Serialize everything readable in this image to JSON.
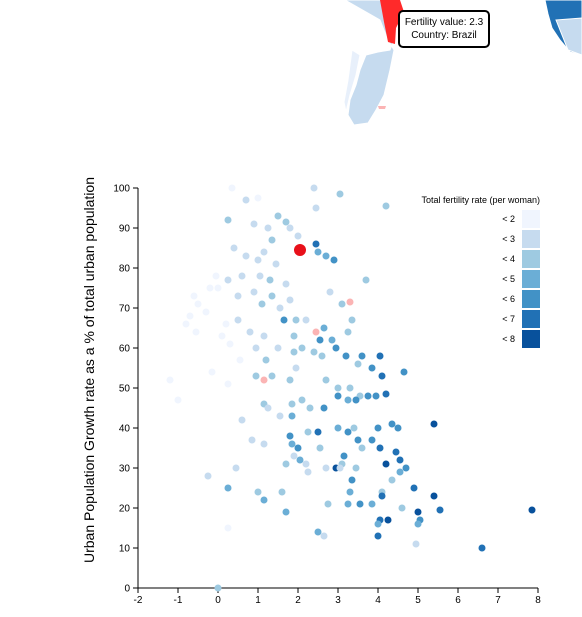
{
  "tooltip": {
    "line1": "Fertility value: 2.3",
    "line2": "Country: Brazil",
    "highlight_color": "#ff2a2a"
  },
  "colors": {
    "low": "#eef3fd",
    "bins": [
      "#f0f5fe",
      "#c6dbef",
      "#9ecae1",
      "#6baed6",
      "#4292c6",
      "#2171b5",
      "#08519c"
    ],
    "highlight": "#e8101a",
    "negative": "#fbb4b4"
  },
  "legend": {
    "title": "Total fertility rate (per woman)",
    "items": [
      "< 2",
      "< 3",
      "< 4",
      "< 5",
      "< 6",
      "< 7",
      "< 8"
    ]
  },
  "chart_data": {
    "type": "scatter",
    "xlabel": "",
    "ylabel": "Urban Population Growth rate as a % of total urban population",
    "xlim": [
      -2,
      8
    ],
    "ylim": [
      0,
      100
    ],
    "x_ticks": [
      -2,
      -1,
      0,
      1,
      2,
      3,
      4,
      5,
      6,
      7,
      8
    ],
    "y_ticks": [
      0,
      10,
      20,
      30,
      40,
      50,
      60,
      70,
      80,
      90,
      100
    ],
    "highlighted": {
      "x": 2.05,
      "y": 84.5,
      "fertility": 2.3,
      "country": "Brazil"
    },
    "points": [
      {
        "x": 0.35,
        "y": 100,
        "f": 0
      },
      {
        "x": 1.0,
        "y": 97.5,
        "f": 0
      },
      {
        "x": 0.7,
        "y": 97,
        "f": 1
      },
      {
        "x": 2.4,
        "y": 100,
        "f": 1
      },
      {
        "x": 3.05,
        "y": 98.5,
        "f": 2
      },
      {
        "x": 4.2,
        "y": 95.5,
        "f": 2
      },
      {
        "x": 0.25,
        "y": 92,
        "f": 2
      },
      {
        "x": 0.9,
        "y": 91,
        "f": 1
      },
      {
        "x": 1.5,
        "y": 93,
        "f": 2
      },
      {
        "x": 1.7,
        "y": 91.5,
        "f": 2
      },
      {
        "x": 2.45,
        "y": 95,
        "f": 1
      },
      {
        "x": 2.0,
        "y": 88,
        "f": 1
      },
      {
        "x": 1.25,
        "y": 90,
        "f": 1
      },
      {
        "x": 1.35,
        "y": 87,
        "f": 2
      },
      {
        "x": 1.8,
        "y": 90,
        "f": 1
      },
      {
        "x": 0.4,
        "y": 85,
        "f": 1
      },
      {
        "x": 0.7,
        "y": 83,
        "f": 1
      },
      {
        "x": 1.0,
        "y": 82,
        "f": 1
      },
      {
        "x": 1.15,
        "y": 84,
        "f": 1
      },
      {
        "x": 1.45,
        "y": 81,
        "f": 1
      },
      {
        "x": 2.45,
        "y": 86,
        "f": 5
      },
      {
        "x": 2.5,
        "y": 84,
        "f": 3
      },
      {
        "x": 2.7,
        "y": 83,
        "f": 3
      },
      {
        "x": 2.9,
        "y": 82,
        "f": 4
      },
      {
        "x": -0.05,
        "y": 78,
        "f": 0
      },
      {
        "x": 0.25,
        "y": 77,
        "f": 1
      },
      {
        "x": 0.6,
        "y": 78,
        "f": 1
      },
      {
        "x": 1.05,
        "y": 78,
        "f": 1
      },
      {
        "x": 1.3,
        "y": 77,
        "f": 2
      },
      {
        "x": 1.7,
        "y": 76,
        "f": 1
      },
      {
        "x": -0.2,
        "y": 75,
        "f": 0
      },
      {
        "x": 0.0,
        "y": 75,
        "f": 0
      },
      {
        "x": 0.5,
        "y": 73,
        "f": 1
      },
      {
        "x": 0.9,
        "y": 74,
        "f": 1
      },
      {
        "x": 1.1,
        "y": 71,
        "f": 2
      },
      {
        "x": 1.35,
        "y": 73,
        "f": 2
      },
      {
        "x": 1.55,
        "y": 70,
        "f": 1
      },
      {
        "x": 1.8,
        "y": 72,
        "f": 1
      },
      {
        "x": 2.8,
        "y": 74,
        "f": 1
      },
      {
        "x": 3.7,
        "y": 77,
        "f": 2
      },
      {
        "x": 3.3,
        "y": 71.5,
        "f": -1
      },
      {
        "x": 3.1,
        "y": 71,
        "f": 2
      },
      {
        "x": -0.6,
        "y": 73,
        "f": 0
      },
      {
        "x": -0.5,
        "y": 71,
        "f": 0
      },
      {
        "x": -0.3,
        "y": 69,
        "f": 0
      },
      {
        "x": -0.7,
        "y": 68,
        "f": 0
      },
      {
        "x": -0.8,
        "y": 66,
        "f": 0
      },
      {
        "x": -0.55,
        "y": 64,
        "f": 0
      },
      {
        "x": 0.2,
        "y": 66,
        "f": 0
      },
      {
        "x": 0.5,
        "y": 67,
        "f": 1
      },
      {
        "x": 0.8,
        "y": 64,
        "f": 1
      },
      {
        "x": 0.1,
        "y": 63,
        "f": 0
      },
      {
        "x": 0.3,
        "y": 61,
        "f": 0
      },
      {
        "x": 0.95,
        "y": 60,
        "f": 1
      },
      {
        "x": 1.15,
        "y": 63,
        "f": 1
      },
      {
        "x": 1.5,
        "y": 60,
        "f": 1
      },
      {
        "x": 1.65,
        "y": 67,
        "f": 4
      },
      {
        "x": 1.95,
        "y": 67,
        "f": 2
      },
      {
        "x": 2.2,
        "y": 67,
        "f": 1
      },
      {
        "x": 1.9,
        "y": 63,
        "f": 2
      },
      {
        "x": 2.45,
        "y": 64,
        "f": -1
      },
      {
        "x": 2.65,
        "y": 65,
        "f": 3
      },
      {
        "x": 2.55,
        "y": 62,
        "f": 4
      },
      {
        "x": 2.85,
        "y": 62,
        "f": 3
      },
      {
        "x": 3.25,
        "y": 64,
        "f": 2
      },
      {
        "x": 3.35,
        "y": 67,
        "f": 2
      },
      {
        "x": 2.1,
        "y": 60,
        "f": 2
      },
      {
        "x": 2.4,
        "y": 59,
        "f": 2
      },
      {
        "x": 2.6,
        "y": 58,
        "f": 2
      },
      {
        "x": 1.9,
        "y": 59,
        "f": 2
      },
      {
        "x": 0.55,
        "y": 57,
        "f": 0
      },
      {
        "x": 1.2,
        "y": 57,
        "f": 2
      },
      {
        "x": 1.95,
        "y": 55,
        "f": 1
      },
      {
        "x": 2.95,
        "y": 60,
        "f": 4
      },
      {
        "x": 3.2,
        "y": 58,
        "f": 4
      },
      {
        "x": 3.5,
        "y": 56,
        "f": 2
      },
      {
        "x": 4.05,
        "y": 58,
        "f": 5
      },
      {
        "x": 3.6,
        "y": 58,
        "f": 4
      },
      {
        "x": 3.85,
        "y": 55,
        "f": 4
      },
      {
        "x": 4.65,
        "y": 54,
        "f": 4
      },
      {
        "x": 4.1,
        "y": 53,
        "f": 5
      },
      {
        "x": -1.2,
        "y": 52,
        "f": 0
      },
      {
        "x": -1.0,
        "y": 47,
        "f": 0
      },
      {
        "x": -0.15,
        "y": 54,
        "f": 0
      },
      {
        "x": 0.25,
        "y": 51,
        "f": 0
      },
      {
        "x": 0.95,
        "y": 53,
        "f": 2
      },
      {
        "x": 1.15,
        "y": 52,
        "f": -1
      },
      {
        "x": 1.35,
        "y": 53,
        "f": 2
      },
      {
        "x": 1.8,
        "y": 52,
        "f": 2
      },
      {
        "x": 2.7,
        "y": 52,
        "f": 2
      },
      {
        "x": 3.0,
        "y": 50,
        "f": 2
      },
      {
        "x": 3.3,
        "y": 50,
        "f": 2
      },
      {
        "x": 3.55,
        "y": 48,
        "f": 2
      },
      {
        "x": 3.75,
        "y": 48,
        "f": 4
      },
      {
        "x": 3.95,
        "y": 48,
        "f": 4
      },
      {
        "x": 4.2,
        "y": 48.5,
        "f": 5
      },
      {
        "x": 3.0,
        "y": 48,
        "f": 4
      },
      {
        "x": 3.25,
        "y": 47,
        "f": 3
      },
      {
        "x": 3.45,
        "y": 47,
        "f": 4
      },
      {
        "x": 2.1,
        "y": 47,
        "f": 2
      },
      {
        "x": 1.85,
        "y": 46,
        "f": 2
      },
      {
        "x": 2.65,
        "y": 45,
        "f": 4
      },
      {
        "x": 2.3,
        "y": 45,
        "f": 2
      },
      {
        "x": 1.15,
        "y": 46,
        "f": 2
      },
      {
        "x": 1.25,
        "y": 45,
        "f": 1
      },
      {
        "x": 0.6,
        "y": 42,
        "f": 1
      },
      {
        "x": 1.55,
        "y": 43,
        "f": 1
      },
      {
        "x": 1.85,
        "y": 43,
        "f": 3
      },
      {
        "x": 3.0,
        "y": 40,
        "f": 3
      },
      {
        "x": 3.4,
        "y": 40,
        "f": 2
      },
      {
        "x": 4.0,
        "y": 40,
        "f": 4
      },
      {
        "x": 4.35,
        "y": 41,
        "f": 4
      },
      {
        "x": 4.5,
        "y": 40,
        "f": 4
      },
      {
        "x": 5.4,
        "y": 41,
        "f": 6
      },
      {
        "x": 2.5,
        "y": 39,
        "f": 5
      },
      {
        "x": 2.25,
        "y": 39,
        "f": 2
      },
      {
        "x": 3.25,
        "y": 39,
        "f": 4
      },
      {
        "x": 1.8,
        "y": 38,
        "f": 4
      },
      {
        "x": 0.85,
        "y": 37,
        "f": 1
      },
      {
        "x": 1.15,
        "y": 36,
        "f": 1
      },
      {
        "x": 1.85,
        "y": 36,
        "f": 3
      },
      {
        "x": 2.0,
        "y": 35,
        "f": 4
      },
      {
        "x": 2.55,
        "y": 35,
        "f": 2
      },
      {
        "x": 3.5,
        "y": 37,
        "f": 4
      },
      {
        "x": 3.6,
        "y": 35,
        "f": 2
      },
      {
        "x": 3.85,
        "y": 37,
        "f": 4
      },
      {
        "x": 4.05,
        "y": 35,
        "f": 5
      },
      {
        "x": 4.45,
        "y": 34,
        "f": 5
      },
      {
        "x": 4.55,
        "y": 32,
        "f": 5
      },
      {
        "x": 3.15,
        "y": 33,
        "f": 4
      },
      {
        "x": 3.1,
        "y": 31,
        "f": 2
      },
      {
        "x": 3.45,
        "y": 30,
        "f": 2
      },
      {
        "x": 4.2,
        "y": 31,
        "f": 6
      },
      {
        "x": 4.7,
        "y": 30,
        "f": 4
      },
      {
        "x": 4.55,
        "y": 29,
        "f": 3
      },
      {
        "x": 2.2,
        "y": 31,
        "f": 1
      },
      {
        "x": 1.9,
        "y": 33,
        "f": 1
      },
      {
        "x": 2.05,
        "y": 32,
        "f": 3
      },
      {
        "x": 1.7,
        "y": 31,
        "f": 2
      },
      {
        "x": 0.45,
        "y": 30,
        "f": 1
      },
      {
        "x": 2.25,
        "y": 29,
        "f": 1
      },
      {
        "x": 2.7,
        "y": 30,
        "f": 1
      },
      {
        "x": 2.95,
        "y": 30,
        "f": 7
      },
      {
        "x": 3.05,
        "y": 30,
        "f": 1
      },
      {
        "x": -0.25,
        "y": 28,
        "f": 1
      },
      {
        "x": 3.35,
        "y": 27,
        "f": 4
      },
      {
        "x": 4.35,
        "y": 27,
        "f": 2
      },
      {
        "x": 4.9,
        "y": 25,
        "f": 5
      },
      {
        "x": 5.4,
        "y": 23,
        "f": 7
      },
      {
        "x": 4.1,
        "y": 24,
        "f": 2
      },
      {
        "x": 0.25,
        "y": 25,
        "f": 3
      },
      {
        "x": 1.0,
        "y": 24,
        "f": 2
      },
      {
        "x": 1.15,
        "y": 22,
        "f": 3
      },
      {
        "x": 1.6,
        "y": 24,
        "f": 2
      },
      {
        "x": 3.3,
        "y": 24,
        "f": 3
      },
      {
        "x": 4.1,
        "y": 23,
        "f": 5
      },
      {
        "x": 2.75,
        "y": 21,
        "f": 2
      },
      {
        "x": 3.25,
        "y": 21,
        "f": 3
      },
      {
        "x": 3.55,
        "y": 21,
        "f": 4
      },
      {
        "x": 3.85,
        "y": 21,
        "f": 3
      },
      {
        "x": 4.6,
        "y": 20,
        "f": 2
      },
      {
        "x": 5.0,
        "y": 19,
        "f": 6
      },
      {
        "x": 5.55,
        "y": 19.5,
        "f": 5
      },
      {
        "x": 7.85,
        "y": 19.5,
        "f": 6
      },
      {
        "x": 1.7,
        "y": 19,
        "f": 3
      },
      {
        "x": 4.05,
        "y": 17,
        "f": 5
      },
      {
        "x": 4.25,
        "y": 17,
        "f": 6
      },
      {
        "x": 5.05,
        "y": 17,
        "f": 4
      },
      {
        "x": 4.0,
        "y": 16,
        "f": 3
      },
      {
        "x": 5.0,
        "y": 16,
        "f": 3
      },
      {
        "x": 0.25,
        "y": 15,
        "f": 0
      },
      {
        "x": 2.5,
        "y": 14,
        "f": 3
      },
      {
        "x": 2.65,
        "y": 13,
        "f": 1
      },
      {
        "x": 4.0,
        "y": 13,
        "f": 5
      },
      {
        "x": 4.95,
        "y": 11,
        "f": 1
      },
      {
        "x": 6.6,
        "y": 10,
        "f": 5
      },
      {
        "x": 0.0,
        "y": 0,
        "f": 2
      }
    ]
  }
}
